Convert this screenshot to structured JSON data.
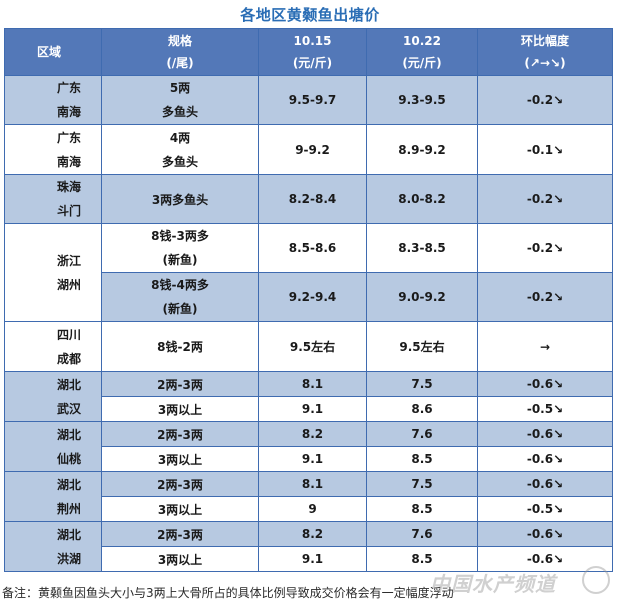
{
  "title": "各地区黄颡鱼出塘价",
  "header": {
    "region": "区域",
    "spec": [
      "规格",
      "(/尾)"
    ],
    "d1": [
      "10.15",
      "(元/斤)"
    ],
    "d2": [
      "10.22",
      "(元/斤)"
    ],
    "chg": [
      "环比幅度",
      "(↗→↘)"
    ]
  },
  "rows": [
    {
      "region": [
        "广东",
        "南海"
      ],
      "spec": [
        "5两",
        "多鱼头"
      ],
      "d1": "9.5-9.7",
      "d2": "9.3-9.5",
      "chg": "-0.2↘"
    },
    {
      "region": [
        "广东",
        "南海"
      ],
      "spec": [
        "4两",
        "多鱼头"
      ],
      "d1": "9-9.2",
      "d2": "8.9-9.2",
      "chg": "-0.1↘"
    },
    {
      "region": [
        "珠海",
        "斗门"
      ],
      "spec": [
        "3两多鱼头"
      ],
      "d1": "8.2-8.4",
      "d2": "8.0-8.2",
      "chg": "-0.2↘"
    },
    {
      "region": [
        "浙江",
        "湖州"
      ],
      "spec": [
        "8钱-3两多",
        "(新鱼)"
      ],
      "d1": "8.5-8.6",
      "d2": "8.3-8.5",
      "chg": "-0.2↘"
    },
    {
      "spec": [
        "8钱-4两多",
        "(新鱼)"
      ],
      "d1": "9.2-9.4",
      "d2": "9.0-9.2",
      "chg": "-0.2↘"
    },
    {
      "region": [
        "四川",
        "成都"
      ],
      "spec": [
        "8钱-2两"
      ],
      "d1": "9.5左右",
      "d2": "9.5左右",
      "chg": "→"
    },
    {
      "region": [
        "湖北",
        "武汉"
      ],
      "spec": [
        "2两-3两"
      ],
      "d1": "8.1",
      "d2": "7.5",
      "chg": "-0.6↘"
    },
    {
      "spec": [
        "3两以上"
      ],
      "d1": "9.1",
      "d2": "8.6",
      "chg": "-0.5↘"
    },
    {
      "region": [
        "湖北",
        "仙桃"
      ],
      "spec": [
        "2两-3两"
      ],
      "d1": "8.2",
      "d2": "7.6",
      "chg": "-0.6↘"
    },
    {
      "spec": [
        "3两以上"
      ],
      "d1": "9.1",
      "d2": "8.5",
      "chg": "-0.6↘"
    },
    {
      "region": [
        "湖北",
        "荆州"
      ],
      "spec": [
        "2两-3两"
      ],
      "d1": "8.1",
      "d2": "7.5",
      "chg": "-0.6↘"
    },
    {
      "spec": [
        "3两以上"
      ],
      "d1": "9",
      "d2": "8.5",
      "chg": "-0.5↘"
    },
    {
      "region": [
        "湖北",
        "洪湖"
      ],
      "spec": [
        "2两-3两"
      ],
      "d1": "8.2",
      "d2": "7.6",
      "chg": "-0.6↘"
    },
    {
      "spec": [
        "3两以上"
      ],
      "d1": "9.1",
      "d2": "8.5",
      "chg": "-0.6↘"
    }
  ],
  "note": "备注：黄颡鱼因鱼头大小与3两上大骨所占的具体比例导致成交价格会有一定幅度浮动",
  "watermark": "中国水产频道"
}
